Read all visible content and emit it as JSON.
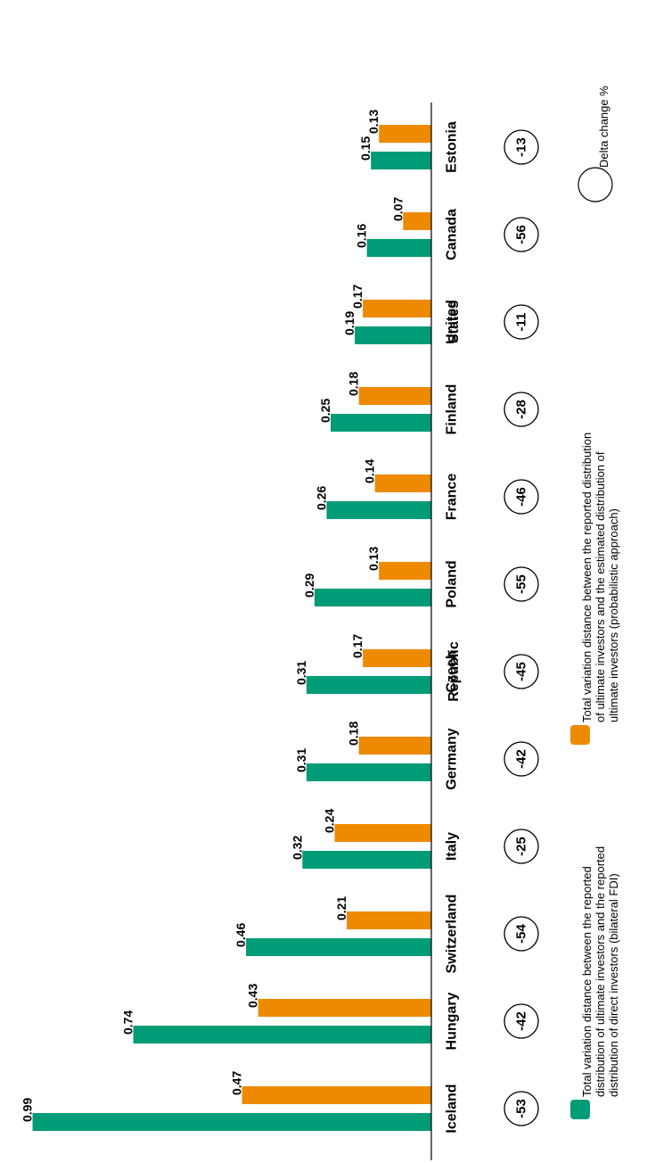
{
  "chart_data": {
    "type": "bar",
    "categories": [
      "Iceland",
      "Hungary",
      "Switzerland",
      "Italy",
      "Germany",
      "Czech Republic",
      "Poland",
      "France",
      "Finland",
      "United States",
      "Canada",
      "Estonia"
    ],
    "series": [
      {
        "values": [
          0.99,
          0.74,
          0.46,
          0.32,
          0.31,
          0.31,
          0.29,
          0.26,
          0.25,
          0.19,
          0.16,
          0.15
        ]
      },
      {
        "values": [
          0.47,
          0.43,
          0.21,
          0.24,
          0.18,
          0.17,
          0.13,
          0.14,
          0.18,
          0.17,
          0.07,
          0.13
        ]
      }
    ],
    "delta_change": [
      "-53",
      "-42",
      "-54",
      "-25",
      "-42",
      "-45",
      "-55",
      "-46",
      "-28",
      "-11",
      "-56",
      "-13"
    ],
    "ylim": [
      0,
      1
    ],
    "orientation": "rotated-90"
  },
  "colors": {
    "green": "#009b77",
    "orange": "#ee8a00"
  },
  "legend": {
    "green_text": [
      "Total variation distance between the reported",
      "distribution of ultimate investors and the reported",
      "distribution of direct investors (bilateral FDI)"
    ],
    "orange_text": [
      "Total variation distance between the reported distribution",
      "of ultimate investors and the estimated distribution of",
      "ultimate investors (probabilistic approach)"
    ],
    "circle_text": "Delta change %"
  }
}
